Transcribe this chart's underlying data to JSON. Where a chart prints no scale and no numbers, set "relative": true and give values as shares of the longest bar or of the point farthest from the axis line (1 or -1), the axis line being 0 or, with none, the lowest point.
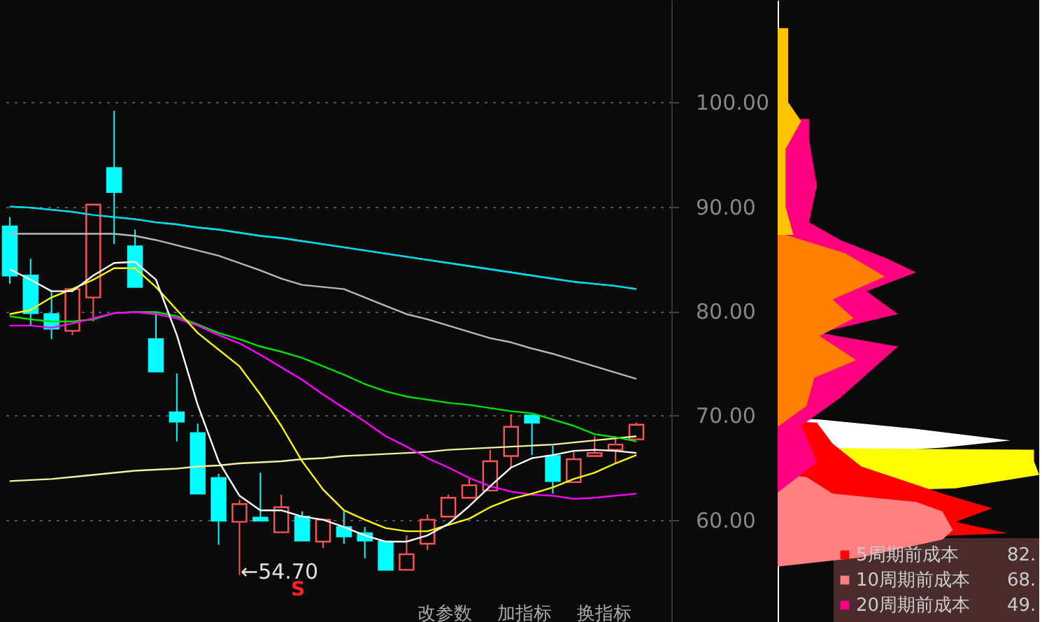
{
  "chart_data": [
    {
      "type": "candlestick",
      "categories": [
        null,
        null,
        null,
        null,
        null,
        null,
        null,
        null,
        null,
        null,
        null,
        null,
        null,
        null,
        null,
        null,
        null,
        null,
        null,
        null,
        null,
        null,
        null,
        null,
        null,
        null,
        null,
        null,
        null,
        null,
        null
      ],
      "ohlc": [
        [
          88.1,
          89.0,
          82.6,
          83.4
        ],
        [
          83.4,
          85.0,
          78.6,
          79.8
        ],
        [
          79.7,
          81.9,
          77.3,
          78.3
        ],
        [
          78.1,
          82.1,
          77.7,
          82.1
        ],
        [
          81.3,
          90.2,
          79.0,
          90.2
        ],
        [
          93.7,
          99.2,
          86.4,
          91.4
        ],
        [
          86.2,
          87.8,
          82.3,
          82.3
        ],
        [
          77.3,
          79.9,
          74.2,
          74.2
        ],
        [
          70.3,
          74.0,
          67.5,
          69.4
        ],
        [
          68.3,
          69.2,
          62.5,
          62.5
        ],
        [
          64.0,
          64.4,
          57.6,
          59.9
        ],
        [
          59.8,
          61.9,
          54.7,
          61.5
        ],
        [
          60.2,
          64.5,
          59.9,
          59.9
        ],
        [
          58.8,
          62.4,
          58.8,
          61.2
        ],
        [
          60.3,
          60.8,
          58.0,
          58.0
        ],
        [
          57.9,
          60.0,
          57.3,
          60.0
        ],
        [
          59.3,
          60.9,
          57.7,
          58.4
        ],
        [
          58.7,
          59.3,
          56.3,
          58.0
        ],
        [
          57.9,
          57.9,
          55.2,
          55.2
        ],
        [
          55.2,
          58.5,
          55.2,
          56.7
        ],
        [
          57.7,
          60.5,
          57.1,
          60.0
        ],
        [
          60.3,
          62.4,
          60.3,
          62.1
        ],
        [
          62.1,
          64.0,
          62.1,
          63.3
        ],
        [
          62.8,
          66.7,
          62.8,
          65.6
        ],
        [
          66.1,
          70.1,
          65.0,
          68.9
        ],
        [
          70.0,
          70.0,
          66.2,
          69.3
        ],
        [
          66.1,
          67.1,
          62.5,
          63.7
        ],
        [
          63.6,
          66.6,
          63.6,
          65.8
        ],
        [
          66.1,
          68.0,
          66.1,
          66.4
        ],
        [
          66.7,
          68.0,
          65.4,
          67.2
        ],
        [
          67.7,
          69.3,
          67.7,
          69.1
        ]
      ],
      "colors": [
        "#00ffff",
        "#00ffff",
        "#00ffff",
        "#ff5454",
        "#ff5454",
        "#00ffff",
        "#00ffff",
        "#00ffff",
        "#00ffff",
        "#00ffff",
        "#00ffff",
        "#ff5454",
        "#00ffff",
        "#ff5454",
        "#00ffff",
        "#ff5454",
        "#00ffff",
        "#00ffff",
        "#00ffff",
        "#ff5454",
        "#ff5454",
        "#ff5454",
        "#ff5454",
        "#ff5454",
        "#ff5454",
        "#00ffff",
        "#00ffff",
        "#ff5454",
        "#ff5454",
        "#ff5454",
        "#ff5454"
      ],
      "series": [
        {
          "type": "line",
          "color": "#00d8e8",
          "values": [
            90.0,
            89.9,
            89.7,
            89.5,
            89.2,
            89.0,
            88.8,
            88.5,
            88.3,
            88.0,
            87.8,
            87.5,
            87.2,
            87.0,
            86.7,
            86.4,
            86.1,
            85.8,
            85.5,
            85.2,
            84.9,
            84.6,
            84.3,
            84.0,
            83.7,
            83.4,
            83.1,
            82.8,
            82.6,
            82.4,
            82.1
          ]
        },
        {
          "type": "line",
          "color": "#b8b8b8",
          "values": [
            87.4,
            87.4,
            87.4,
            87.4,
            87.4,
            87.4,
            87.2,
            86.8,
            86.3,
            85.8,
            85.3,
            84.6,
            83.9,
            83.1,
            82.5,
            82.3,
            82.1,
            81.3,
            80.5,
            79.7,
            79.2,
            78.6,
            78.0,
            77.4,
            77.0,
            76.4,
            75.9,
            75.3,
            74.7,
            74.1,
            73.5
          ]
        },
        {
          "type": "line",
          "color": "#f0f0a0",
          "values": [
            63.7,
            63.8,
            63.9,
            64.1,
            64.3,
            64.5,
            64.7,
            64.8,
            64.9,
            65.1,
            65.2,
            65.4,
            65.5,
            65.6,
            65.8,
            65.9,
            66.1,
            66.2,
            66.3,
            66.4,
            66.5,
            66.7,
            66.8,
            66.9,
            67.0,
            67.1,
            67.2,
            67.4,
            67.6,
            67.8,
            68.0
          ]
        },
        {
          "type": "line",
          "color": "#00e000",
          "values": [
            79.5,
            79.2,
            79.0,
            79.0,
            79.2,
            79.8,
            79.9,
            79.9,
            79.5,
            78.7,
            77.9,
            77.3,
            76.6,
            76.1,
            75.5,
            74.7,
            73.9,
            73.0,
            72.3,
            71.8,
            71.5,
            71.2,
            71.0,
            70.7,
            70.4,
            70.2,
            69.6,
            69.0,
            68.2,
            67.9,
            67.5
          ]
        },
        {
          "type": "line",
          "color": "#ff00ff",
          "values": [
            78.6,
            78.6,
            78.4,
            78.8,
            79.3,
            79.8,
            79.9,
            79.7,
            79.3,
            78.6,
            77.7,
            76.9,
            75.8,
            74.6,
            73.4,
            72.0,
            70.7,
            69.4,
            68.0,
            67.0,
            65.9,
            65.0,
            64.0,
            63.2,
            62.7,
            62.4,
            62.3,
            62.0,
            62.1,
            62.3,
            62.5
          ]
        },
        {
          "type": "line",
          "color": "#ffff00",
          "values": [
            79.7,
            80.1,
            81.3,
            82.1,
            83.0,
            84.1,
            84.1,
            82.3,
            80.1,
            77.9,
            76.3,
            74.7,
            72.0,
            69.0,
            65.6,
            62.9,
            60.9,
            60.0,
            59.2,
            58.9,
            58.9,
            59.5,
            60.1,
            61.2,
            62.0,
            62.5,
            63.1,
            63.9,
            64.5,
            65.4,
            66.2
          ]
        },
        {
          "type": "line",
          "color": "#ffffff",
          "values": [
            84.0,
            83.0,
            81.9,
            81.9,
            83.4,
            84.6,
            84.7,
            83.0,
            77.7,
            71.0,
            65.6,
            62.3,
            60.9,
            60.9,
            60.3,
            60.0,
            59.3,
            58.5,
            57.9,
            57.9,
            58.5,
            59.6,
            61.3,
            63.2,
            65.0,
            65.9,
            66.2,
            66.6,
            66.7,
            66.6,
            66.4
          ]
        }
      ],
      "ylim": [
        50.2,
        109.8
      ],
      "yticks": [
        {
          "value": 60,
          "label": "60.00"
        },
        {
          "value": 70,
          "label": "70.00"
        },
        {
          "value": 80,
          "label": "80.00"
        },
        {
          "value": 90,
          "label": "90.00"
        },
        {
          "value": 100,
          "label": "100.00"
        }
      ],
      "grid": "y",
      "annotations": [
        "←54.70",
        "S",
        "改参数",
        "加指标",
        "换指标"
      ]
    },
    {
      "type": "area",
      "orientation": "horizontal",
      "relative": true,
      "legend": "bottom right",
      "series": [
        {
          "color": "#ffffff",
          "x": [
            69.8,
            69.6,
            68.7,
            67.6,
            66.9,
            66.0
          ],
          "values": [
            0,
            0.16,
            0.53,
            0.89,
            0.63,
            0
          ]
        },
        {
          "color": "#ffff00",
          "x": [
            66.9,
            66.7,
            65.6,
            64.3,
            63.0,
            62.5
          ],
          "values": [
            0,
            0.98,
            0.98,
            1,
            0.68,
            0
          ]
        },
        {
          "name": "5周期前成本",
          "color": "#ff0000",
          "x": [
            69.5,
            69.3,
            67.3,
            65.1,
            62.5,
            61.1,
            59.8,
            58.7,
            57.8
          ],
          "values": [
            0,
            0.15,
            0.21,
            0.32,
            0.63,
            0.82,
            0.68,
            0.88,
            0
          ]
        },
        {
          "name": "10周期前成本",
          "color": "#ff8080",
          "x": [
            64.3,
            64.1,
            62.5,
            61.7,
            60.8,
            59.0,
            58.1,
            56.4,
            55.5
          ],
          "values": [
            0,
            0.11,
            0.21,
            0.53,
            0.63,
            0.67,
            0.63,
            0.32,
            0
          ]
        },
        {
          "name": "20周期前成本",
          "color": "#ff0080",
          "x": [
            98.4,
            96.4,
            92.0,
            88.5,
            86.8,
            85.0,
            83.7,
            81.9,
            79.7,
            77.9,
            76.6,
            71.7,
            69.0,
            65.5,
            62.6
          ],
          "values": [
            0.12,
            0.12,
            0.15,
            0.12,
            0.24,
            0.42,
            0.53,
            0.34,
            0.46,
            0.16,
            0.46,
            0.24,
            0.09,
            0.15,
            0
          ]
        },
        {
          "color": "#ffc400",
          "x": [
            107.1,
            100,
            98.2,
            95.5,
            90,
            87.3
          ],
          "values": [
            0.04,
            0.04,
            0.09,
            0.03,
            0.03,
            0.06
          ]
        },
        {
          "color": "#ff8000",
          "x": [
            87.3,
            85.5,
            83.3,
            81.1,
            79.3,
            77.6,
            75.3,
            73.6,
            70.9,
            68.9
          ],
          "values": [
            0.03,
            0.26,
            0.41,
            0.21,
            0.29,
            0.16,
            0.3,
            0.14,
            0.11,
            0
          ]
        }
      ],
      "ylim": [
        50.2,
        109.8
      ],
      "annotations": [
        "82.",
        "68.",
        "49."
      ]
    }
  ]
}
